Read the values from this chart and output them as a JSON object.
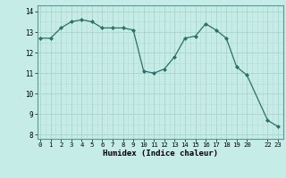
{
  "x": [
    0,
    1,
    2,
    3,
    4,
    5,
    6,
    7,
    8,
    9,
    10,
    11,
    12,
    13,
    14,
    15,
    16,
    17,
    18,
    19,
    20,
    22,
    23
  ],
  "y": [
    12.7,
    12.7,
    13.2,
    13.5,
    13.6,
    13.5,
    13.2,
    13.2,
    13.2,
    13.1,
    11.1,
    11.0,
    11.2,
    11.8,
    12.7,
    12.8,
    13.4,
    13.1,
    12.7,
    11.3,
    10.9,
    8.7,
    8.4
  ],
  "line_color": "#2d7068",
  "marker": "D",
  "marker_size": 2.0,
  "bg_color": "#c5ece6",
  "grid_color_major": "#aad4cc",
  "grid_color_minor": "#bad9d3",
  "xlabel": "Humidex (Indice chaleur)",
  "xlim": [
    -0.3,
    23.5
  ],
  "ylim": [
    7.8,
    14.3
  ],
  "yticks": [
    8,
    9,
    10,
    11,
    12,
    13,
    14
  ],
  "xtick_positions": [
    0,
    1,
    2,
    3,
    4,
    5,
    6,
    7,
    8,
    9,
    10,
    11,
    12,
    13,
    14,
    15,
    16,
    17,
    18,
    19,
    20,
    22,
    23
  ],
  "xtick_labels": [
    "0",
    "1",
    "2",
    "3",
    "4",
    "5",
    "6",
    "7",
    "8",
    "9",
    "10",
    "11",
    "12",
    "13",
    "14",
    "15",
    "16",
    "17",
    "18",
    "19",
    "20",
    "22",
    "23"
  ]
}
